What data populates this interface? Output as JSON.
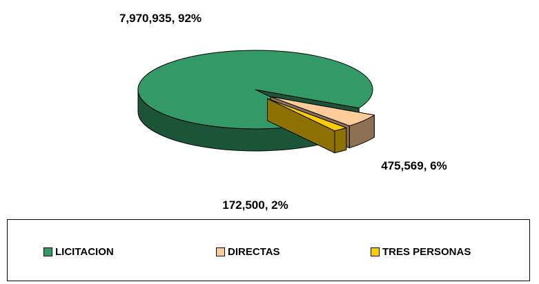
{
  "chart_data": {
    "type": "pie",
    "categories": [
      "LICITACION",
      "DIRECTAS",
      "TRES PERSONAS"
    ],
    "values": [
      7970935,
      475569,
      172500
    ],
    "value_labels": [
      "7,970,935, 92%",
      "475,569, 6%",
      "172,500, 2%"
    ],
    "colors": [
      "#339966",
      "#ffcc99",
      "#ffcc00"
    ],
    "legend": "bottom"
  }
}
